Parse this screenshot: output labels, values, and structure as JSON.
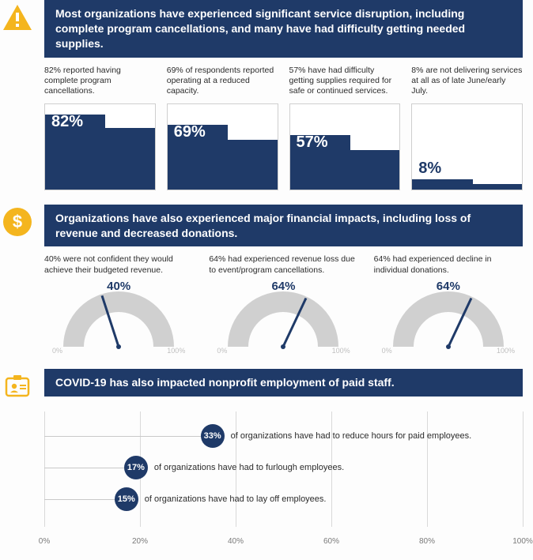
{
  "colors": {
    "navy": "#1f3a68",
    "gold": "#f4b51e",
    "grid": "#d9d9d9",
    "gauge_track": "#d0d0d0",
    "text": "#2b2b2b",
    "pale": "#bfbfbf"
  },
  "section1": {
    "title": "Most organizations have experienced significant service disruption, including complete program cancellations, and many have had difficulty getting needed supplies.",
    "items": [
      {
        "desc": "82% reported having complete program cancellations.",
        "value": 82,
        "back_h": 72,
        "front_h": 88
      },
      {
        "desc": "69% of respondents reported operating at a reduced capacity.",
        "value": 69,
        "back_h": 58,
        "front_h": 76
      },
      {
        "desc": "57% have had difficulty getting supplies required for safe or continued services.",
        "value": 57,
        "back_h": 46,
        "front_h": 64
      },
      {
        "desc": "8% are not delivering services at all as of late June/early July.",
        "value": 8,
        "back_h": 6,
        "front_h": 12
      }
    ]
  },
  "section2": {
    "title": "Organizations have also experienced major financial impacts, including loss of revenue and decreased donations.",
    "items": [
      {
        "desc": "40% were not confident they would achieve their budgeted revenue.",
        "value": 40
      },
      {
        "desc": "64% had experienced revenue loss due to event/program cancellations.",
        "value": 64
      },
      {
        "desc": "64% had experienced decline in individual donations.",
        "value": 64
      }
    ],
    "gauge": {
      "track_color": "#d0d0d0",
      "needle_color": "#1f3a68",
      "min_label": "0%",
      "max_label": "100%"
    }
  },
  "section3": {
    "title": "COVID-19 has also impacted nonprofit employment of paid staff.",
    "items": [
      {
        "value": 33,
        "text": "of organizations have had to reduce hours for paid employees."
      },
      {
        "value": 17,
        "text": "of organizations have had to furlough employees."
      },
      {
        "value": 15,
        "text": "of organizations have had to lay off employees."
      }
    ],
    "axis": {
      "ticks": [
        0,
        20,
        40,
        60,
        80,
        100
      ]
    }
  }
}
